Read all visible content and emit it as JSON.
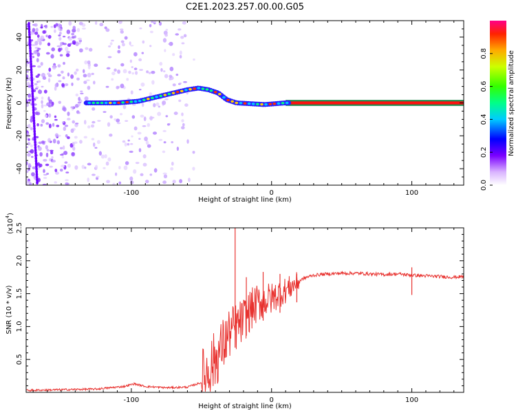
{
  "title": "C2E1.2023.257.00.00.G05",
  "chart_data": [
    {
      "type": "heatmap",
      "xlabel": "Height of straight line (km)",
      "ylabel": "Frequency (Hz)",
      "xlim": [
        -175,
        137
      ],
      "ylim": [
        -50,
        50
      ],
      "xticks": [
        -100,
        0,
        100
      ],
      "yticks": [
        -40,
        -20,
        0,
        20,
        40
      ],
      "colorbar": {
        "label": "Normalized spectral amplitude",
        "range": [
          0,
          1
        ],
        "ticks": [
          "0.0",
          "0.2",
          "0.4",
          "0.6",
          "0.8"
        ]
      },
      "ridge": [
        {
          "x": -130,
          "y": 0
        },
        {
          "x": -110,
          "y": 0
        },
        {
          "x": -95,
          "y": 1
        },
        {
          "x": -80,
          "y": 4
        },
        {
          "x": -70,
          "y": 6
        },
        {
          "x": -60,
          "y": 8
        },
        {
          "x": -52,
          "y": 9
        },
        {
          "x": -45,
          "y": 8
        },
        {
          "x": -38,
          "y": 6
        },
        {
          "x": -32,
          "y": 2
        },
        {
          "x": -25,
          "y": 0
        },
        {
          "x": -15,
          "y": -0.5
        },
        {
          "x": -5,
          "y": -1
        },
        {
          "x": 10,
          "y": 0
        },
        {
          "x": 137,
          "y": 0
        }
      ]
    },
    {
      "type": "line",
      "xlabel": "Height of straight line (km)",
      "ylabel": "SNR (10 * v/v)",
      "yscale_label": "(x10",
      "yscale_exp": "4",
      "yscale_close": ")",
      "xlim": [
        -175,
        137
      ],
      "ylim": [
        0,
        2.5
      ],
      "xticks": [
        -100,
        0,
        100
      ],
      "yticks": [
        "0.5",
        "1.0",
        "1.5",
        "2.0",
        "2.5"
      ],
      "series": [
        {
          "color": "#e8322f",
          "x": [
            -175,
            -150,
            -125,
            -105,
            -98,
            -90,
            -75,
            -60,
            -50,
            -45,
            -40,
            -35,
            -30,
            -25,
            -22,
            -20,
            -15,
            -10,
            -5,
            0,
            5,
            10,
            15,
            20,
            25,
            30,
            40,
            50,
            60,
            70,
            80,
            90,
            100,
            110,
            120,
            130,
            137
          ],
          "y": [
            0.03,
            0.04,
            0.05,
            0.09,
            0.13,
            0.09,
            0.07,
            0.08,
            0.15,
            0.35,
            0.5,
            0.7,
            0.9,
            1.0,
            1.05,
            1.1,
            1.25,
            1.35,
            1.4,
            1.42,
            1.5,
            1.55,
            1.62,
            1.7,
            1.75,
            1.78,
            1.8,
            1.81,
            1.81,
            1.8,
            1.79,
            1.8,
            1.78,
            1.77,
            1.76,
            1.75,
            1.76
          ]
        }
      ],
      "spikes": [
        {
          "x": -26,
          "y": 2.5
        },
        {
          "x": -18,
          "y": 1.75
        },
        {
          "x": -6,
          "y": 1.83
        },
        {
          "x": 6,
          "y": 1.8
        },
        {
          "x": 18,
          "y": 1.8
        },
        {
          "x": 100,
          "y": 1.9
        }
      ]
    }
  ]
}
